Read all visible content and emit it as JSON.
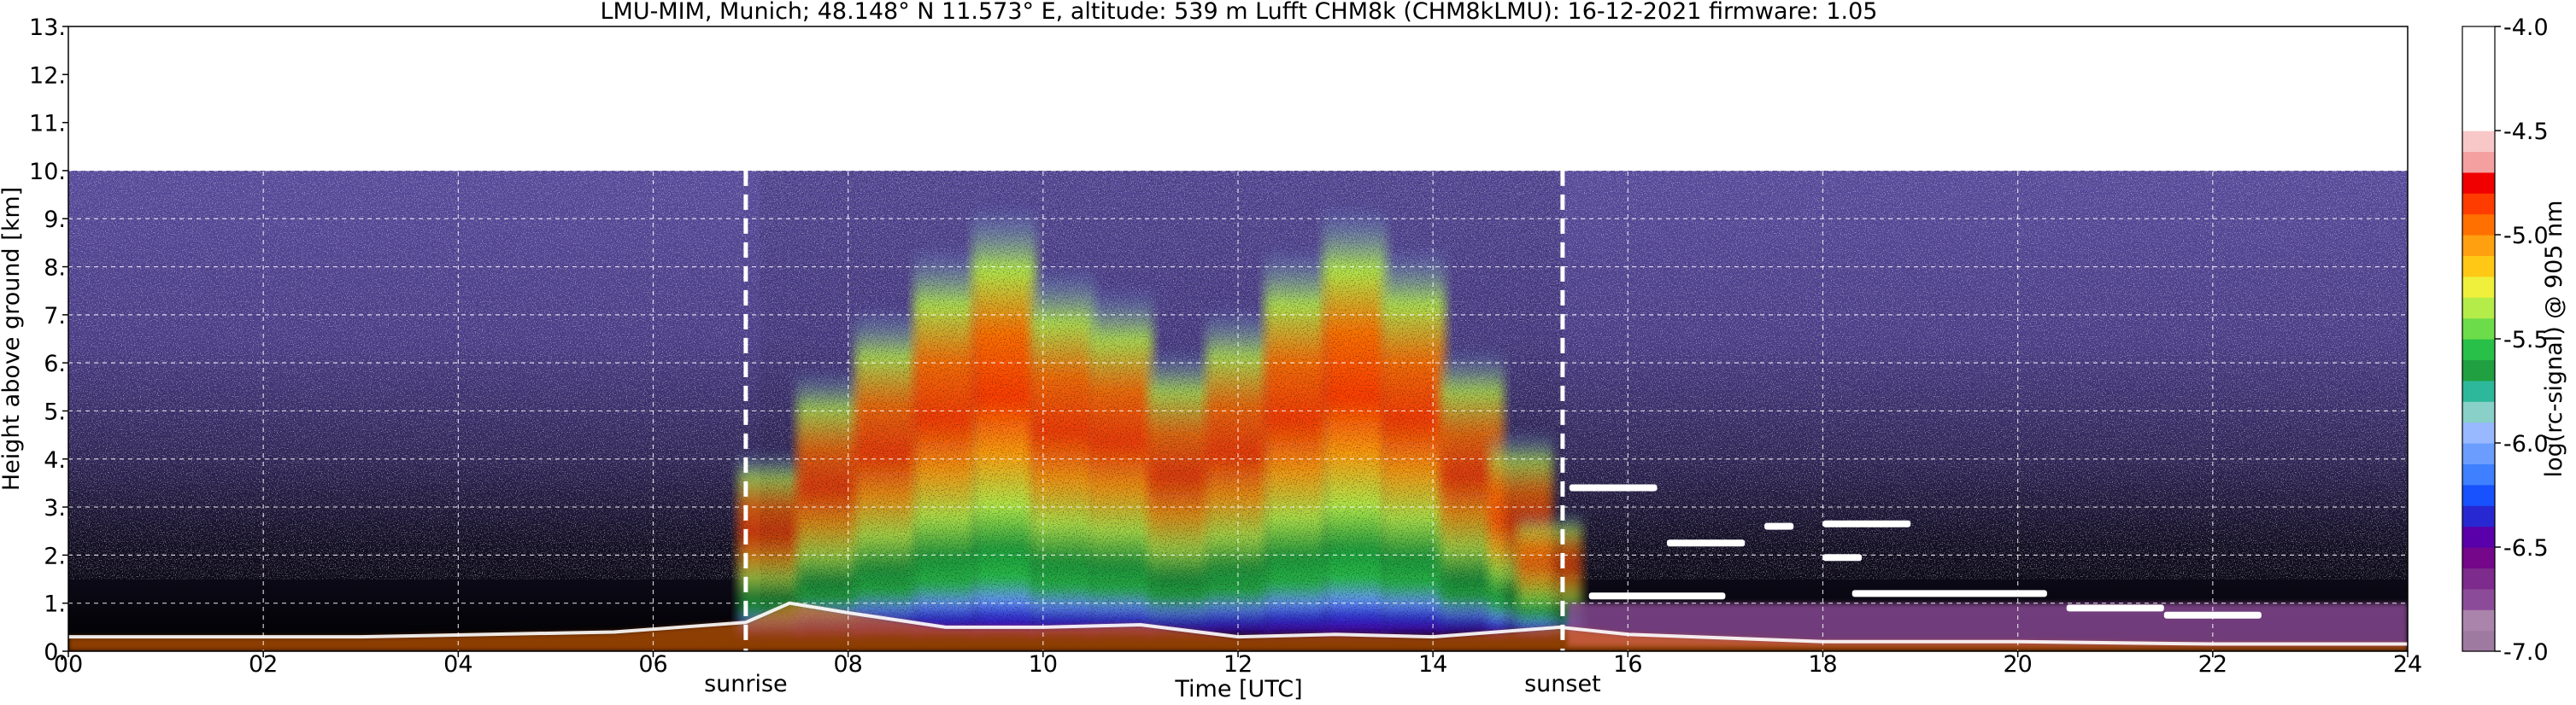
{
  "chart_data": {
    "type": "heatmap",
    "title": "LMU-MIM, Munich; 48.148° N 11.573° E, altitude: 539 m    Lufft CHM8k (CHM8kLMU): 16-12-2021    firmware: 1.05",
    "xlabel": "Time [UTC]",
    "ylabel": "Height above ground [km]",
    "xlim": [
      0,
      24
    ],
    "ylim": [
      0,
      13
    ],
    "x_ticks": [
      "00",
      "02",
      "04",
      "06",
      "08",
      "10",
      "12",
      "14",
      "16",
      "18",
      "20",
      "22",
      "24"
    ],
    "y_ticks": [
      "0.",
      "1.",
      "2.",
      "3.",
      "4.",
      "5.",
      "6.",
      "7.",
      "8.",
      "9.",
      "10.",
      "11.",
      "12.",
      "13."
    ],
    "grid": true,
    "data_top_km": 10.0,
    "colorbar": {
      "label": "log(rc-signal) @ 905 nm",
      "range": [
        -7.0,
        -4.0
      ],
      "ticks": [
        "-4.0",
        "-4.5",
        "-5.0",
        "-5.5",
        "-6.0",
        "-6.5",
        "-7.0"
      ],
      "colors": [
        "#9e7aa0",
        "#aa84ab",
        "#8c4b98",
        "#7d2b8c",
        "#74078a",
        "#5a00aa",
        "#2828d2",
        "#1852ff",
        "#3e80ff",
        "#6b9dff",
        "#98b8ff",
        "#88d0c8",
        "#2eb89b",
        "#20a040",
        "#28c048",
        "#6ddc4a",
        "#b4ec4a",
        "#eef03c",
        "#ffc814",
        "#ffa010",
        "#ff7000",
        "#ff3c00",
        "#f00000",
        "#f4a0a0",
        "#f8c8c8",
        "#ffffff",
        "#ffffff",
        "#ffffff",
        "#ffffff",
        "#ffffff"
      ]
    },
    "events": [
      {
        "label": "sunrise",
        "time_h": 6.95
      },
      {
        "label": "sunset",
        "time_h": 15.33
      }
    ],
    "aerosol_layer_top_km": [
      [
        0.0,
        0.3
      ],
      [
        3.0,
        0.3
      ],
      [
        5.6,
        0.4
      ],
      [
        6.95,
        0.6
      ],
      [
        7.4,
        1.0
      ],
      [
        8.0,
        0.8
      ],
      [
        9.0,
        0.5
      ],
      [
        10.0,
        0.5
      ],
      [
        11.0,
        0.55
      ],
      [
        12.0,
        0.3
      ],
      [
        13.0,
        0.35
      ],
      [
        14.0,
        0.3
      ],
      [
        15.3,
        0.5
      ],
      [
        16.0,
        0.35
      ],
      [
        18.0,
        0.2
      ],
      [
        20.0,
        0.2
      ],
      [
        22.0,
        0.15
      ],
      [
        24.0,
        0.15
      ]
    ],
    "convective_signal": [
      {
        "t": 7.2,
        "intensity": 0.35
      },
      {
        "t": 7.8,
        "intensity": 0.55
      },
      {
        "t": 8.4,
        "intensity": 0.7
      },
      {
        "t": 9.0,
        "intensity": 0.85
      },
      {
        "t": 9.6,
        "intensity": 0.95
      },
      {
        "t": 10.2,
        "intensity": 0.8
      },
      {
        "t": 10.8,
        "intensity": 0.75
      },
      {
        "t": 11.4,
        "intensity": 0.6
      },
      {
        "t": 12.0,
        "intensity": 0.7
      },
      {
        "t": 12.6,
        "intensity": 0.85
      },
      {
        "t": 13.2,
        "intensity": 0.95
      },
      {
        "t": 13.8,
        "intensity": 0.85
      },
      {
        "t": 14.4,
        "intensity": 0.6
      },
      {
        "t": 14.9,
        "intensity": 0.4
      },
      {
        "t": 15.2,
        "intensity": 0.2
      }
    ],
    "cloud_features": [
      {
        "t0": 15.4,
        "t1": 16.3,
        "h": 3.4
      },
      {
        "t0": 16.4,
        "t1": 17.2,
        "h": 2.25
      },
      {
        "t0": 17.4,
        "t1": 17.7,
        "h": 2.6
      },
      {
        "t0": 18.0,
        "t1": 18.9,
        "h": 2.65
      },
      {
        "t0": 18.0,
        "t1": 18.4,
        "h": 1.95
      },
      {
        "t0": 18.3,
        "t1": 20.3,
        "h": 1.2
      },
      {
        "t0": 15.6,
        "t1": 17.0,
        "h": 1.15
      },
      {
        "t0": 20.5,
        "t1": 21.5,
        "h": 0.9
      },
      {
        "t0": 21.5,
        "t1": 22.5,
        "h": 0.75
      }
    ]
  }
}
